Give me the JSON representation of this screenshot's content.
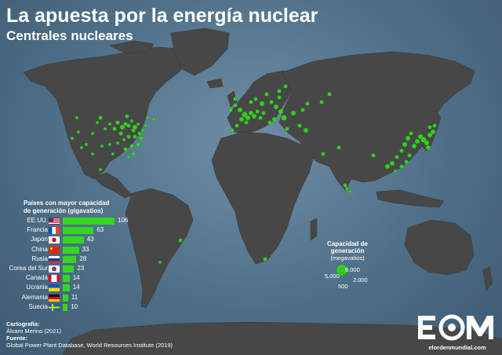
{
  "title": "La apuesta por la energía nuclear",
  "subtitle": "Centrales nucleares",
  "colors": {
    "ocean": "#58788f",
    "land": "#474747",
    "plant": "#35d622",
    "text": "#ffffff"
  },
  "ranking": {
    "title_line1": "Países con mayor capacidad",
    "title_line2": "de generación (gigavatios)",
    "unit": "gigavatios",
    "countries": [
      {
        "name": "EE.UU.",
        "value": 106,
        "value_label": "106",
        "flag": "usa"
      },
      {
        "name": "Francia",
        "value": 63,
        "value_label": "63",
        "flag": "france"
      },
      {
        "name": "Japón",
        "value": 43,
        "value_label": "43",
        "flag": "japan"
      },
      {
        "name": "China",
        "value": 33,
        "value_label": "33",
        "flag": "china"
      },
      {
        "name": "Rusia",
        "value": 28,
        "value_label": "28",
        "flag": "russia"
      },
      {
        "name": "Corea del Sur",
        "value": 23,
        "value_label": "23",
        "flag": "south-korea"
      },
      {
        "name": "Canadá",
        "value": 14,
        "value_label": "14",
        "flag": "canada"
      },
      {
        "name": "Ucrania",
        "value": 14,
        "value_label": "14",
        "flag": "ukraine"
      },
      {
        "name": "Alemania",
        "value": 11,
        "value_label": "11",
        "flag": "germany"
      },
      {
        "name": "Suecia",
        "value": 10,
        "value_label": "10",
        "flag": "sweden"
      }
    ]
  },
  "legend": {
    "title": "Capacidad de generación",
    "unit": "(megavatios)",
    "sizes": [
      "8.000",
      "5.000",
      "2.000",
      "500"
    ]
  },
  "credits": {
    "cartography_label": "Cartografía:",
    "cartography_value": "Álvaro Merino (2021)",
    "source_label": "Fuente:",
    "source_value": "Global Power Plant Database, World Resources Institute (2019)"
  },
  "logo": {
    "mark": "EOM",
    "site": "elordenmundial.com"
  }
}
